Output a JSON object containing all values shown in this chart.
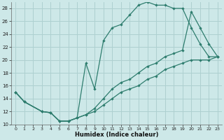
{
  "xlabel": "Humidex (Indice chaleur)",
  "bg_color": "#cde8e8",
  "grid_color": "#aed0d0",
  "line_color": "#2e7d6e",
  "xlim": [
    -0.5,
    23.5
  ],
  "ylim": [
    10,
    29
  ],
  "yticks": [
    10,
    12,
    14,
    16,
    18,
    20,
    22,
    24,
    26,
    28
  ],
  "xticks": [
    0,
    1,
    2,
    3,
    4,
    5,
    6,
    7,
    8,
    9,
    10,
    11,
    12,
    13,
    14,
    15,
    16,
    17,
    18,
    19,
    20,
    21,
    22,
    23
  ],
  "line1_x": [
    0,
    1,
    3,
    4,
    5,
    6,
    7,
    8,
    9,
    10,
    11,
    12,
    13,
    14,
    15,
    16,
    17,
    18,
    19,
    20,
    21,
    22,
    23
  ],
  "line1_y": [
    15,
    13.5,
    12,
    11.8,
    10.5,
    10.5,
    11,
    11.5,
    12,
    13,
    14,
    15,
    15.5,
    16,
    17,
    17.5,
    18.5,
    19,
    19.5,
    20,
    20,
    20,
    20.5
  ],
  "line2_x": [
    0,
    1,
    3,
    4,
    5,
    6,
    7,
    8,
    9,
    10,
    11,
    12,
    13,
    14,
    15,
    16,
    17,
    18,
    19,
    20,
    21,
    22,
    23
  ],
  "line2_y": [
    15,
    13.5,
    12,
    11.8,
    10.5,
    10.5,
    11,
    19.5,
    15.5,
    23,
    25,
    25.5,
    27,
    28.5,
    29,
    28.5,
    28.5,
    28,
    28,
    25,
    22.5,
    20.5,
    20.5
  ],
  "line3_x": [
    0,
    1,
    3,
    4,
    5,
    6,
    7,
    8,
    9,
    10,
    11,
    12,
    13,
    14,
    15,
    16,
    17,
    18,
    19,
    20,
    21,
    22,
    23
  ],
  "line3_y": [
    15,
    13.5,
    12,
    11.8,
    10.5,
    10.5,
    11,
    11.5,
    12.5,
    14,
    15.5,
    16.5,
    17,
    18,
    19,
    19.5,
    20.5,
    21,
    21.5,
    27.5,
    25,
    22.5,
    20.5
  ]
}
